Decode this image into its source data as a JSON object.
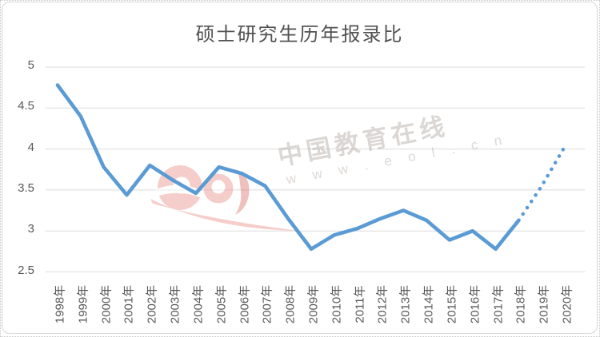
{
  "chart_data": {
    "type": "line",
    "title": "硕士研究生历年报录比",
    "categories": [
      "1998年",
      "1999年",
      "2000年",
      "2001年",
      "2002年",
      "2003年",
      "2004年",
      "2005年",
      "2006年",
      "2007年",
      "2008年",
      "2009年",
      "2010年",
      "2011年",
      "2012年",
      "2013年",
      "2014年",
      "2015年",
      "2016年",
      "2017年",
      "2018年",
      "2019年",
      "2020年"
    ],
    "series": [
      {
        "name": "报录比",
        "values": [
          4.78,
          4.4,
          3.78,
          3.44,
          3.8,
          3.62,
          3.46,
          3.78,
          3.7,
          3.55,
          3.15,
          2.78,
          2.95,
          3.03,
          3.15,
          3.25,
          3.13,
          2.89,
          3.0,
          2.78,
          3.13,
          3.55,
          4.03
        ],
        "solid_until_category": "2018年",
        "projection_style": "dotted"
      }
    ],
    "xlabel": "",
    "ylabel": "",
    "ylim": [
      2.5,
      5
    ],
    "y_ticks": [
      5,
      4.5,
      4,
      3.5,
      3,
      2.5
    ],
    "grid": true,
    "legend": "none",
    "line_color": "#5B9BD5",
    "gridline_color": "#dcdcdc",
    "tick_color": "#595959"
  },
  "watermark": {
    "brand": "中国教育在线",
    "url": "w w w . e o l . c n",
    "logo": "eol-logo",
    "logo_color": "#e98d86",
    "logo_accent_color": "#dd6b62"
  }
}
